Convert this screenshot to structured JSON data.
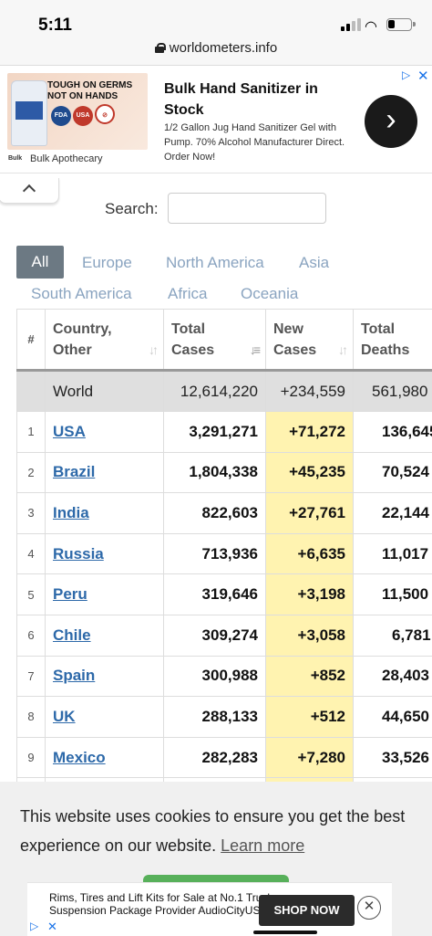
{
  "status_bar": {
    "time": "5:11"
  },
  "browser": {
    "url": "worldometers.info"
  },
  "top_ad": {
    "image_headline": "TOUGH ON GERMS NOT ON HANDS",
    "badge_1": "FDA",
    "badge_2": "USA",
    "brand_logo": "Bulk",
    "brand": "Bulk Apothecary",
    "title": "Bulk Hand Sanitizer in Stock",
    "description": "1/2 Gallon Jug Hand Sanitizer Gel with Pump. 70% Alcohol Manufacturer Direct. Order Now!",
    "icon": "chevron-right-icon"
  },
  "search": {
    "label": "Search:",
    "value": ""
  },
  "region_tabs": [
    "All",
    "Europe",
    "North America",
    "Asia",
    "South America",
    "Africa",
    "Oceania"
  ],
  "table": {
    "headers": {
      "num": "#",
      "country": "Country, Other",
      "total_cases": "Total Cases",
      "new_cases": "New Cases",
      "total_deaths": "Total Deaths"
    },
    "world": {
      "country": "World",
      "total_cases": "12,614,220",
      "new_cases": "+234,559",
      "total_deaths": "561,980"
    },
    "rows": [
      {
        "num": "1",
        "country": "USA",
        "total_cases": "3,291,271",
        "new_cases": "+71,272",
        "total_deaths": "136,645"
      },
      {
        "num": "2",
        "country": "Brazil",
        "total_cases": "1,804,338",
        "new_cases": "+45,235",
        "total_deaths": "70,524"
      },
      {
        "num": "3",
        "country": "India",
        "total_cases": "822,603",
        "new_cases": "+27,761",
        "total_deaths": "22,144"
      },
      {
        "num": "4",
        "country": "Russia",
        "total_cases": "713,936",
        "new_cases": "+6,635",
        "total_deaths": "11,017"
      },
      {
        "num": "5",
        "country": "Peru",
        "total_cases": "319,646",
        "new_cases": "+3,198",
        "total_deaths": "11,500"
      },
      {
        "num": "6",
        "country": "Chile",
        "total_cases": "309,274",
        "new_cases": "+3,058",
        "total_deaths": "6,781"
      },
      {
        "num": "7",
        "country": "Spain",
        "total_cases": "300,988",
        "new_cases": "+852",
        "total_deaths": "28,403"
      },
      {
        "num": "8",
        "country": "UK",
        "total_cases": "288,133",
        "new_cases": "+512",
        "total_deaths": "44,650"
      },
      {
        "num": "9",
        "country": "Mexico",
        "total_cases": "282,283",
        "new_cases": "+7,280",
        "total_deaths": "33,526"
      }
    ]
  },
  "cookie_banner": {
    "text": "This website uses cookies to ensure you get the best experience on our website.",
    "learn_more": "Learn more"
  },
  "bottom_ad": {
    "text": "Rims, Tires and Lift Kits for Sale at No.1 Truck Suspension Package Provider AudioCityUSA",
    "button": "SHOP NOW"
  },
  "colors": {
    "active_tab": "#6c7983",
    "tab_text": "#8aa4c0",
    "link": "#2d69a9",
    "new_cases_highlight": "#fff3b0",
    "world_row": "#dfdfdf",
    "cookie_button": "#57b05a"
  }
}
